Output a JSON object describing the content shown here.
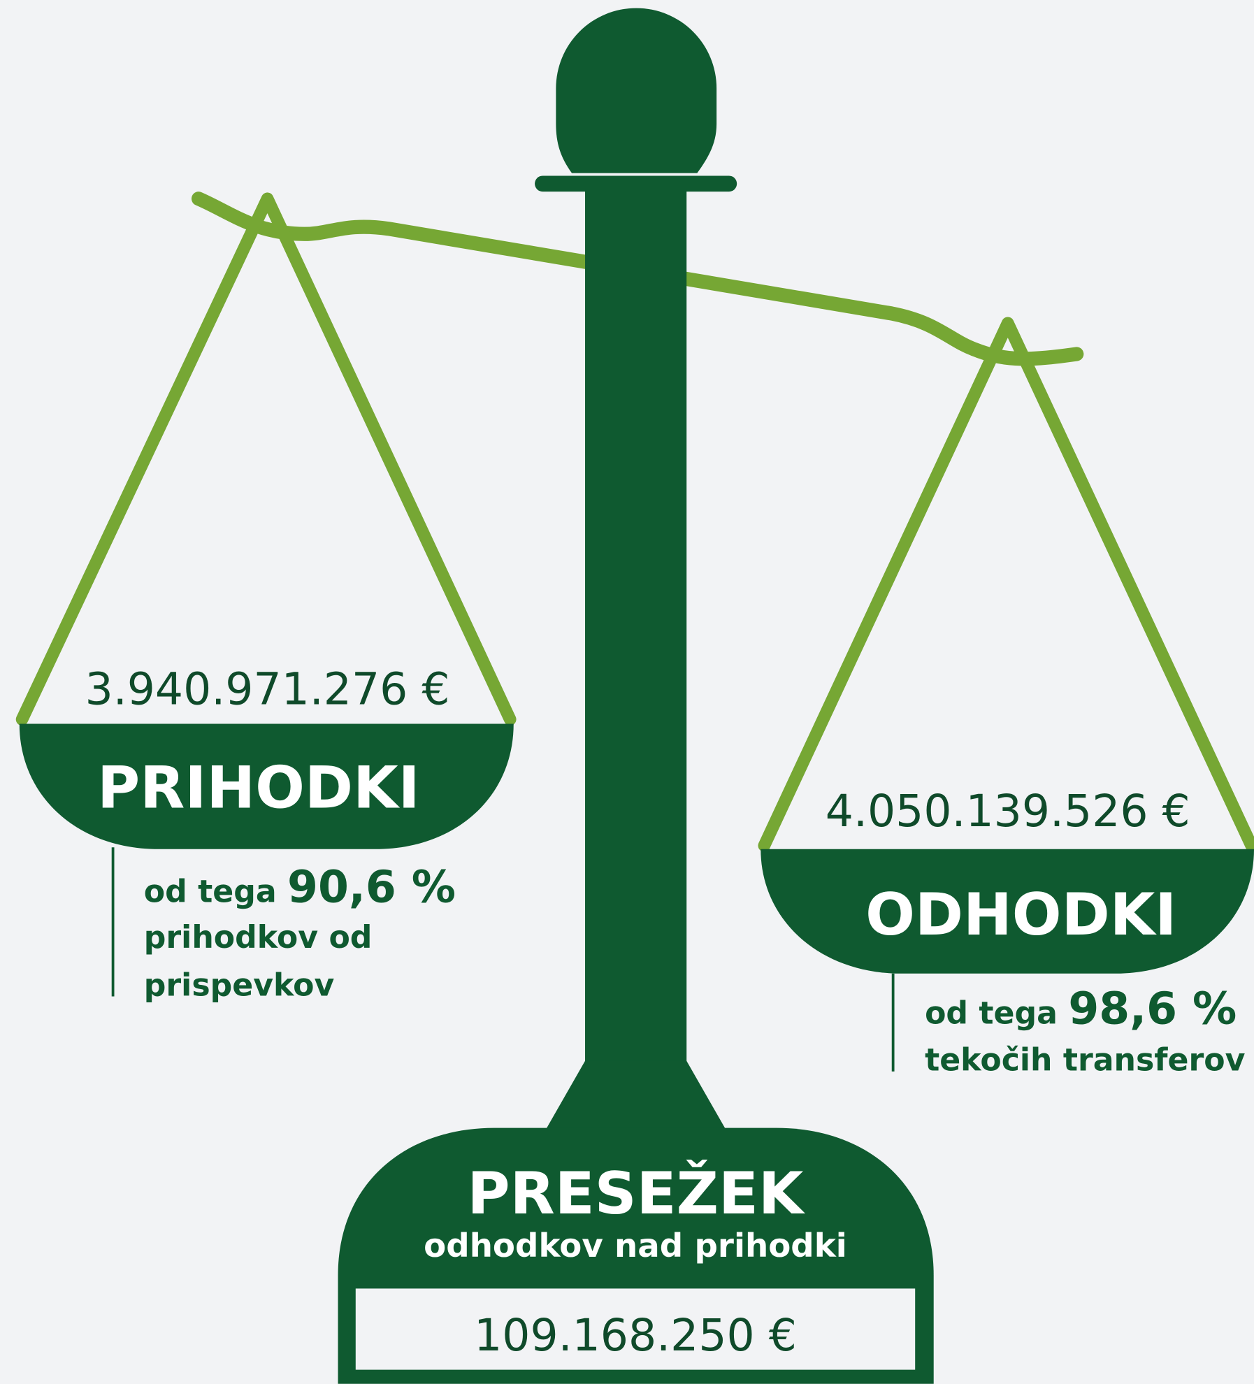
{
  "left_pan": {
    "amount": "3.940.971.276 €",
    "label": "PRIHODKI",
    "note": {
      "prefix": "od tega",
      "share": "90,6 %",
      "lines": [
        "prihodkov od",
        "prispevkov"
      ]
    }
  },
  "right_pan": {
    "amount": "4.050.139.526 €",
    "label": "ODHODKI",
    "note": {
      "prefix": "od tega",
      "share": "98,6 %",
      "lines": [
        "tekočih transferov"
      ]
    }
  },
  "base": {
    "title": "PRESEŽEK",
    "subtitle": "odhodkov nad prihodki",
    "amount": "109.168.250 €"
  }
}
